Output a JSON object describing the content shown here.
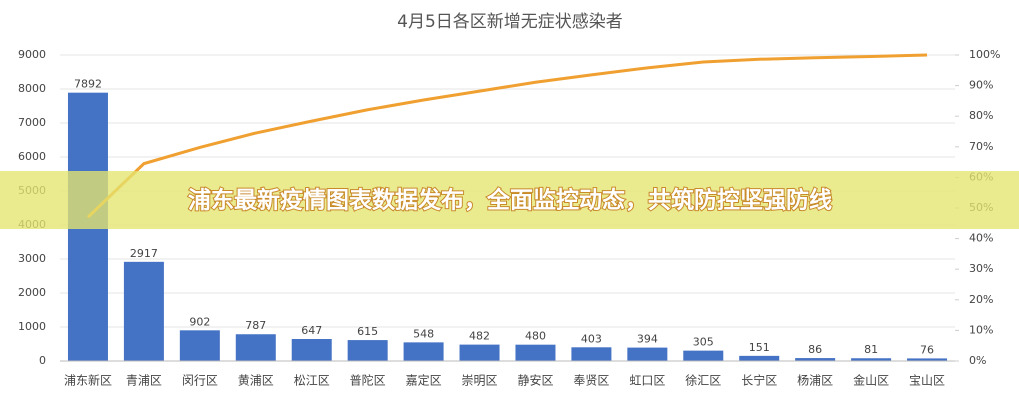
{
  "chart_data": {
    "type": "pareto",
    "title": "4月5日各区新增无症状感染者",
    "banner": "浦东最新疫情图表数据发布，全面监控动态，共筑防控坚强防线",
    "categories": [
      "浦东新区",
      "青浦区",
      "闵行区",
      "黄浦区",
      "松江区",
      "普陀区",
      "嘉定区",
      "崇明区",
      "静安区",
      "奉贤区",
      "虹口区",
      "徐汇区",
      "长宁区",
      "杨浦区",
      "金山区",
      "宝山区"
    ],
    "series": [
      {
        "color": "#4472c4",
        "values": [
          7892,
          2917,
          902,
          787,
          647,
          615,
          548,
          482,
          480,
          403,
          394,
          305,
          151,
          86,
          81,
          76
        ]
      },
      {
        "color": "#f0a030",
        "axis": "y2",
        "values": [
          47,
          64.5,
          69.8,
          74.5,
          78.4,
          82.1,
          85.3,
          88.2,
          91.1,
          93.5,
          95.8,
          97.7,
          98.6,
          99.1,
          99.5,
          100
        ]
      }
    ],
    "ylim": [
      0,
      9000
    ],
    "yticks": [
      0,
      1000,
      2000,
      3000,
      4000,
      5000,
      6000,
      7000,
      8000,
      9000
    ],
    "y2lim": [
      0,
      100
    ],
    "y2ticks": [
      {
        "value": 0,
        "label": "0%"
      },
      {
        "value": 10,
        "label": "10%"
      },
      {
        "value": 20,
        "label": "20%"
      },
      {
        "value": 30,
        "label": "30%"
      },
      {
        "value": 40,
        "label": "40%"
      },
      {
        "value": 50,
        "label": "50%"
      },
      {
        "value": 60,
        "label": "60%"
      },
      {
        "value": 70,
        "label": "70%"
      },
      {
        "value": 80,
        "label": "80%"
      },
      {
        "value": 90,
        "label": "90%"
      },
      {
        "value": 100,
        "label": "100%"
      }
    ],
    "grid": true
  }
}
